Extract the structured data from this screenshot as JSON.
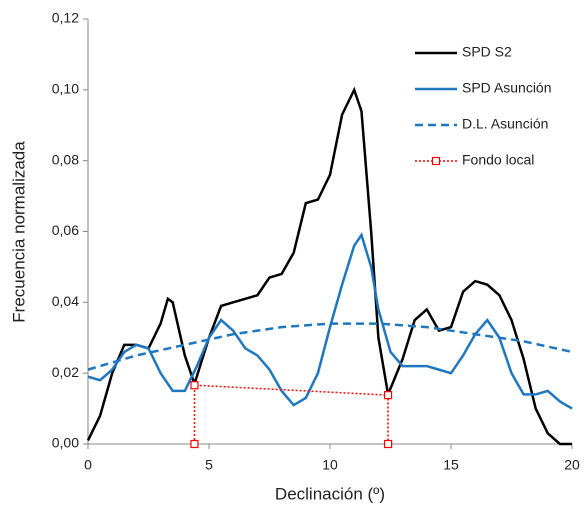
{
  "chart_data": {
    "type": "line",
    "xlabel": "Declinación (º)",
    "ylabel": "Frecuencia normalizada",
    "xlim": [
      0,
      20
    ],
    "xticks": [
      0,
      5,
      10,
      15,
      20
    ],
    "ylim": [
      0,
      0.12
    ],
    "yticks": [
      {
        "value": 0,
        "label": "0,00"
      },
      {
        "value": 0.02,
        "label": "0,02"
      },
      {
        "value": 0.04,
        "label": "0,04"
      },
      {
        "value": 0.06,
        "label": "0,06"
      },
      {
        "value": 0.08,
        "label": "0,08"
      },
      {
        "value": 0.1,
        "label": "0,10"
      },
      {
        "value": 0.12,
        "label": "0,12"
      }
    ],
    "legend": "upper right",
    "series": [
      {
        "name": "SPD S2",
        "color": "#000000",
        "dash": "solid",
        "x": [
          0,
          0.5,
          1,
          1.5,
          2,
          2.5,
          3,
          3.3,
          3.5,
          4,
          4.4,
          5,
          5.5,
          6,
          6.5,
          7,
          7.5,
          8,
          8.5,
          9,
          9.5,
          10,
          10.5,
          11,
          11.3,
          11.7,
          12,
          12.4,
          13,
          13.5,
          14,
          14.5,
          15,
          15.5,
          16,
          16.5,
          17,
          17.5,
          18,
          18.5,
          19,
          19.5,
          20
        ],
        "values": [
          0.001,
          0.008,
          0.02,
          0.028,
          0.028,
          0.027,
          0.034,
          0.041,
          0.04,
          0.025,
          0.017,
          0.03,
          0.039,
          0.04,
          0.041,
          0.042,
          0.047,
          0.048,
          0.054,
          0.068,
          0.069,
          0.076,
          0.093,
          0.1,
          0.094,
          0.06,
          0.03,
          0.014,
          0.024,
          0.035,
          0.038,
          0.032,
          0.033,
          0.043,
          0.046,
          0.045,
          0.042,
          0.035,
          0.024,
          0.01,
          0.003,
          0,
          0
        ]
      },
      {
        "name": "SPD Asunción",
        "color": "#1f77c0",
        "dash": "solid",
        "x": [
          0,
          0.5,
          1,
          1.5,
          2,
          2.5,
          3,
          3.5,
          4,
          4.5,
          5,
          5.5,
          6,
          6.5,
          7,
          7.5,
          8,
          8.5,
          9,
          9.5,
          10,
          10.5,
          11,
          11.3,
          11.7,
          12,
          12.5,
          13,
          13.5,
          14,
          14.5,
          15,
          15.5,
          16,
          16.5,
          17,
          17.5,
          18,
          18.5,
          19,
          19.5,
          20
        ],
        "values": [
          0.019,
          0.018,
          0.021,
          0.026,
          0.028,
          0.027,
          0.02,
          0.015,
          0.015,
          0.022,
          0.03,
          0.035,
          0.032,
          0.027,
          0.025,
          0.021,
          0.015,
          0.011,
          0.013,
          0.02,
          0.033,
          0.045,
          0.056,
          0.059,
          0.05,
          0.038,
          0.026,
          0.022,
          0.022,
          0.022,
          0.021,
          0.02,
          0.025,
          0.031,
          0.035,
          0.03,
          0.02,
          0.014,
          0.014,
          0.015,
          0.012,
          0.01
        ]
      },
      {
        "name": "D.L. Asunción",
        "color": "#1f77c0",
        "dash": "dashed",
        "x": [
          0,
          2,
          4,
          6,
          8,
          10,
          12,
          14,
          16,
          18,
          20
        ],
        "values": [
          0.021,
          0.025,
          0.028,
          0.031,
          0.033,
          0.034,
          0.034,
          0.033,
          0.031,
          0.029,
          0.026
        ]
      },
      {
        "name": "Fondo local",
        "color": "#ff0000",
        "dash": "dotted",
        "marker": "square",
        "x": [
          4.4,
          4.4,
          12.4,
          12.4
        ],
        "values": [
          0,
          0.0166,
          0.0138,
          0
        ]
      }
    ]
  }
}
